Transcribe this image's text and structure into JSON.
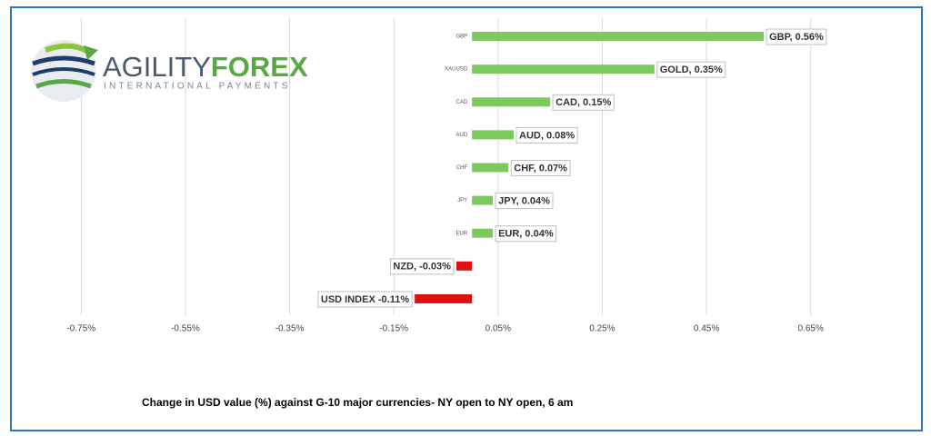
{
  "logo": {
    "brand_first": "AGILITY",
    "brand_second": "FOREX",
    "tagline": "INTERNATIONAL PAYMENTS"
  },
  "chart_data": {
    "type": "hbar",
    "title": "Change in  USD value (%)  against  G-10 major currencies- NY open to NY open, 6 am",
    "categories": [
      "GBP",
      "XAUUSD",
      "CAD",
      "AUD",
      "CHF",
      "JPY",
      "EUR",
      null,
      null
    ],
    "values": [
      0.56,
      0.35,
      0.15,
      0.08,
      0.07,
      0.04,
      0.04,
      -0.03,
      -0.11
    ],
    "value_labels": [
      "GBP, 0.56%",
      "GOLD, 0.35%",
      "CAD, 0.15%",
      "AUD, 0.08%",
      "CHF, 0.07%",
      "JPY, 0.04%",
      "EUR, 0.04%",
      "NZD, -0.03%",
      "USD INDEX -0.11%"
    ],
    "colors": [
      "#7dc95e",
      "#7dc95e",
      "#7dc95e",
      "#7dc95e",
      "#7dc95e",
      "#7dc95e",
      "#7dc95e",
      "#e01010",
      "#e01010"
    ],
    "xlim": [
      -0.85,
      0.75
    ],
    "xticks": [
      {
        "value": -0.75,
        "label": "-0.75%"
      },
      {
        "value": -0.55,
        "label": "-0.55%"
      },
      {
        "value": -0.35,
        "label": "-0.35%"
      },
      {
        "value": -0.15,
        "label": "-0.15%"
      },
      {
        "value": 0.05,
        "label": "0.05%"
      },
      {
        "value": 0.25,
        "label": "0.25%"
      },
      {
        "value": 0.45,
        "label": "0.45%"
      },
      {
        "value": 0.65,
        "label": "0.65%"
      }
    ],
    "grid": true
  }
}
